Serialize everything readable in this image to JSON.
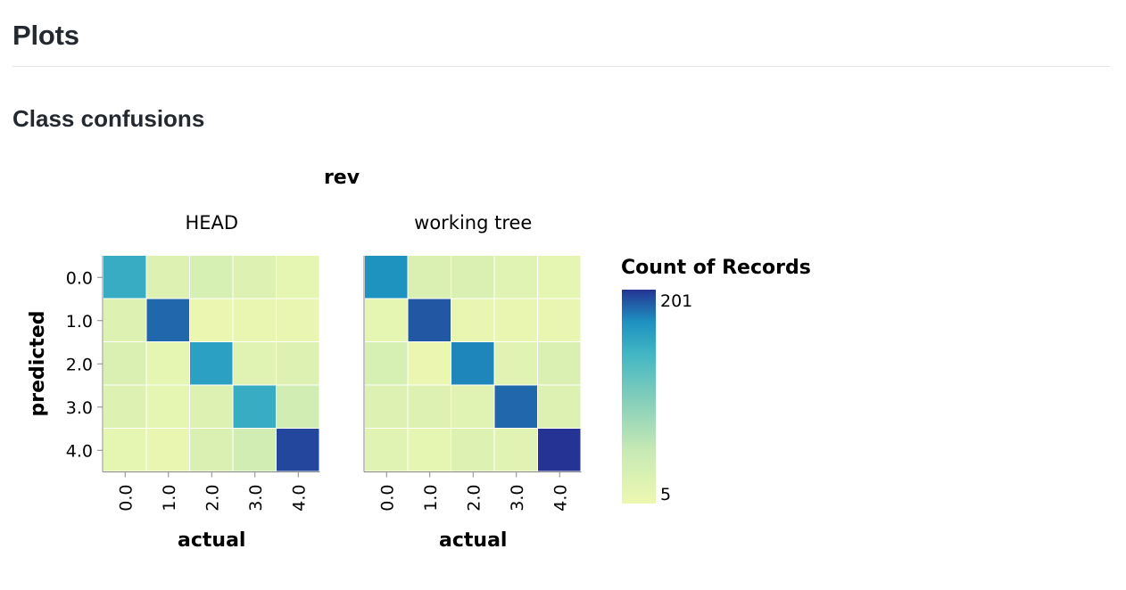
{
  "header": {
    "title": "Plots"
  },
  "section": {
    "title": "Class confusions"
  },
  "colors": {
    "low": "#edf8b1",
    "mid": "#41b6c4",
    "high": "#253494",
    "axis": "#888888"
  },
  "chart_data": {
    "type": "heatmap",
    "facet_title": "rev",
    "xlabel": "actual",
    "ylabel": "predicted",
    "x_categories": [
      "0.0",
      "1.0",
      "2.0",
      "3.0",
      "4.0"
    ],
    "y_categories": [
      "0.0",
      "1.0",
      "2.0",
      "3.0",
      "4.0"
    ],
    "panels": [
      {
        "name": "HEAD",
        "matrix": [
          [
            150,
            25,
            35,
            25,
            15
          ],
          [
            25,
            185,
            8,
            12,
            10
          ],
          [
            30,
            15,
            160,
            20,
            25
          ],
          [
            25,
            15,
            25,
            150,
            40
          ],
          [
            15,
            10,
            30,
            40,
            195
          ]
        ]
      },
      {
        "name": "working tree",
        "matrix": [
          [
            170,
            30,
            30,
            20,
            15
          ],
          [
            15,
            190,
            12,
            12,
            12
          ],
          [
            35,
            8,
            175,
            20,
            30
          ],
          [
            25,
            25,
            20,
            185,
            25
          ],
          [
            20,
            15,
            25,
            20,
            201
          ]
        ]
      }
    ],
    "legend": {
      "title": "Count of Records",
      "min": 5,
      "max": 201,
      "max_label": "201",
      "min_label": "5"
    }
  }
}
